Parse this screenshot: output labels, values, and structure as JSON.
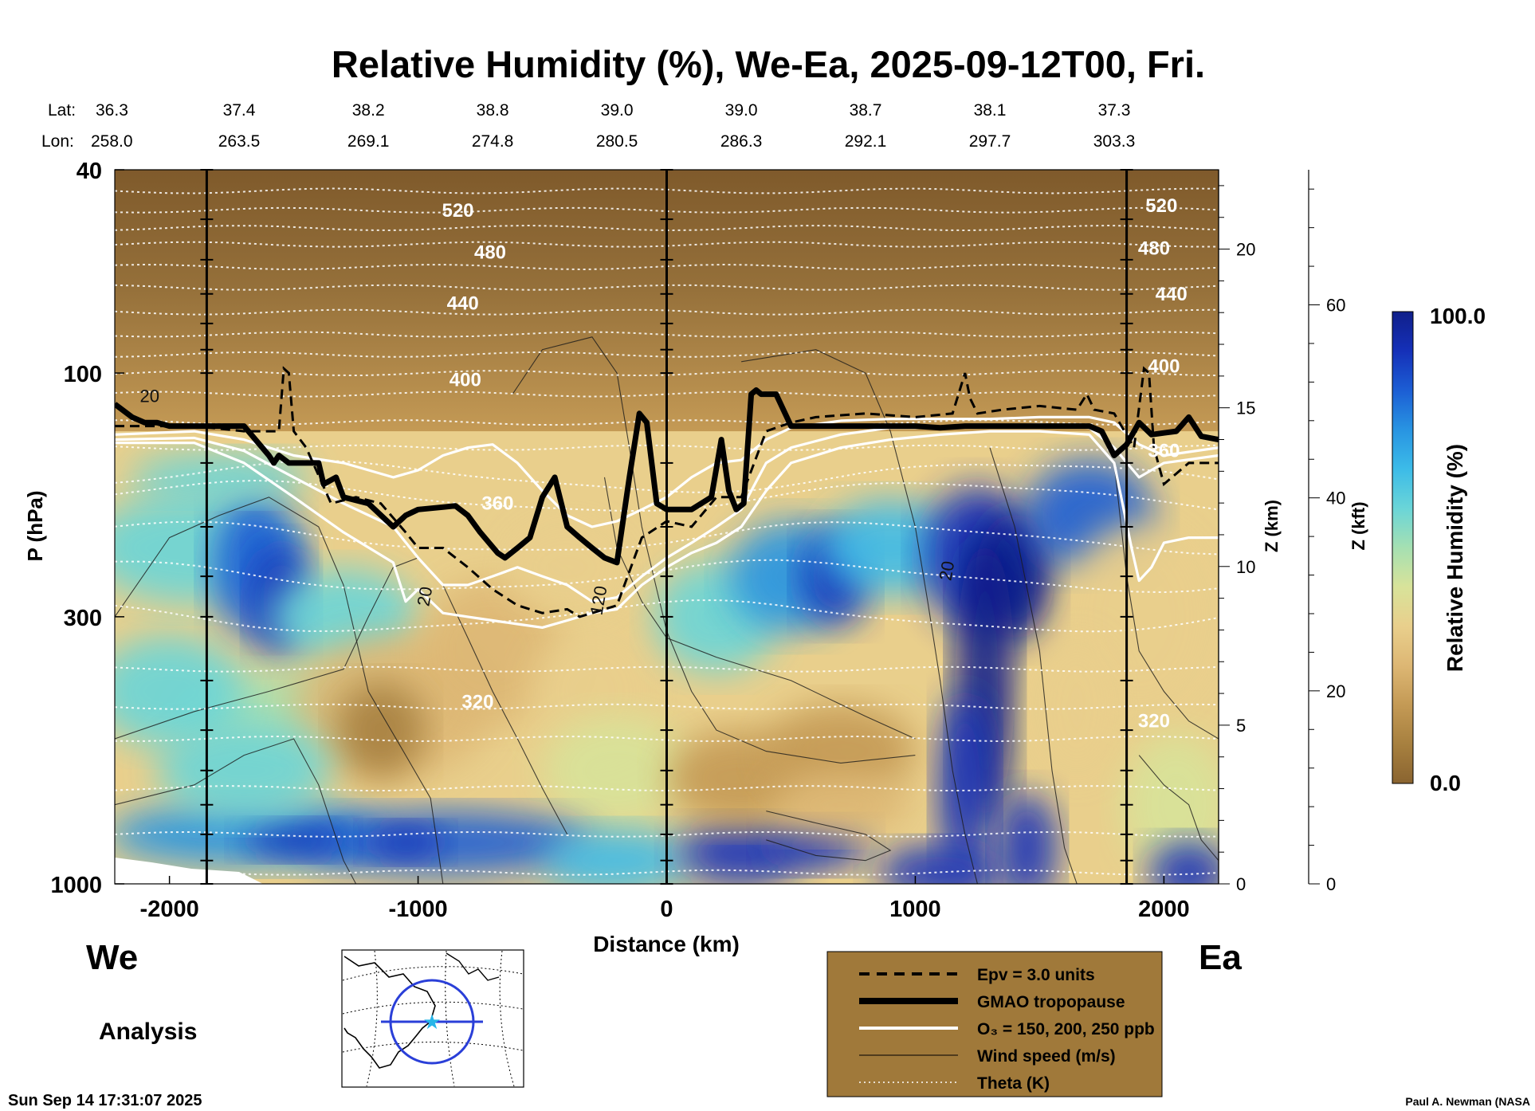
{
  "chart_data": {
    "type": "heatmap",
    "title": "Relative Humidity (%), We-Ea, 2025-09-12T00, Fri.",
    "xlabel": "Distance (km)",
    "ylabel": "P (hPa)",
    "y2label": "Z (km)",
    "y3label": "Z (kft)",
    "xlim": [
      -2220,
      2220
    ],
    "ylim": [
      1000,
      40
    ],
    "x_ticks": [
      -2000,
      -1000,
      0,
      1000,
      2000
    ],
    "x_tick_labels": [
      "-2000",
      "-1000",
      "0",
      "1000",
      "2000"
    ],
    "y_ticks": [
      40,
      100,
      300,
      1000
    ],
    "y_tick_labels": [
      "40",
      "100",
      "300",
      "1000"
    ],
    "z_km_ticks": [
      0,
      5,
      10,
      15,
      20
    ],
    "z_km_tick_labels": [
      "0",
      "5",
      "10",
      "15",
      "20"
    ],
    "z_kft_ticks": [
      0,
      20,
      40,
      60
    ],
    "z_kft_tick_labels": [
      "0",
      "20",
      "40",
      "60"
    ],
    "lat_label": "Lat:",
    "lon_label": "Lon:",
    "lat": [
      "36.3",
      "37.4",
      "38.2",
      "38.8",
      "39.0",
      "39.0",
      "38.7",
      "38.1",
      "37.3"
    ],
    "lon": [
      "258.0",
      "263.5",
      "269.1",
      "274.8",
      "280.5",
      "286.3",
      "292.1",
      "297.7",
      "303.3"
    ],
    "lat_lon_x": [
      -2220,
      -1720,
      -1200,
      -700,
      -200,
      300,
      800,
      1300,
      1800
    ],
    "vertical_lines_km": [
      -1850,
      0,
      1850
    ],
    "colorbar": {
      "label": "Relative Humidity (%)",
      "min": 0.0,
      "max": 100.0,
      "min_label": "0.0",
      "max_label": "100.0",
      "colors": [
        "#8a6430",
        "#a7803f",
        "#c49a55",
        "#ddb774",
        "#e9cf8c",
        "#d8e39a",
        "#a5e0b2",
        "#6ad5d8",
        "#3cbbe8",
        "#2894e2",
        "#1c5ed4",
        "#1530b8",
        "#101f8a"
      ]
    },
    "theta_contours": [
      {
        "label": "520",
        "p": 48
      },
      {
        "label": "480",
        "p": 62
      },
      {
        "label": "440",
        "p": 76
      },
      {
        "label": "400",
        "p": 100
      },
      {
        "label": "360",
        "p": 175
      },
      {
        "label": "320",
        "p": 450
      }
    ],
    "theta_label_positions": [
      {
        "label": "520",
        "x": -840,
        "p": 48
      },
      {
        "label": "480",
        "x": -710,
        "p": 58
      },
      {
        "label": "440",
        "x": -820,
        "p": 73
      },
      {
        "label": "400",
        "x": -810,
        "p": 103
      },
      {
        "label": "360",
        "x": -680,
        "p": 180
      },
      {
        "label": "320",
        "x": -760,
        "p": 440
      },
      {
        "label": "520",
        "x": 1990,
        "p": 47
      },
      {
        "label": "480",
        "x": 1960,
        "p": 57
      },
      {
        "label": "440",
        "x": 2030,
        "p": 70
      },
      {
        "label": "400",
        "x": 2000,
        "p": 97
      },
      {
        "label": "360",
        "x": 2000,
        "p": 142
      },
      {
        "label": "320",
        "x": 1960,
        "p": 480
      }
    ],
    "wind_labels": [
      {
        "label": "20",
        "x": -2080,
        "p": 114
      },
      {
        "label": "20",
        "x": -950,
        "p": 275
      },
      {
        "label": "120",
        "x": -250,
        "p": 280
      },
      {
        "label": "20",
        "x": 1150,
        "p": 245
      }
    ],
    "tropopause": {
      "name": "GMAO tropopause",
      "x": [
        -2220,
        -2150,
        -2100,
        -2050,
        -2000,
        -1950,
        -1850,
        -1700,
        -1600,
        -1580,
        -1560,
        -1520,
        -1400,
        -1380,
        -1330,
        -1300,
        -1200,
        -1100,
        -1050,
        -1000,
        -900,
        -850,
        -800,
        -750,
        -680,
        -650,
        -600,
        -550,
        -500,
        -450,
        -400,
        -350,
        -300,
        -250,
        -200,
        -150,
        -110,
        -80,
        -40,
        0,
        100,
        180,
        220,
        250,
        280,
        310,
        340,
        360,
        380,
        440,
        500,
        550,
        900,
        1000,
        1100,
        1200,
        1300,
        1400,
        1550,
        1650,
        1700,
        1750,
        1800,
        1850,
        1900,
        1950,
        2000,
        2050,
        2100,
        2150,
        2220
      ],
      "p": [
        115,
        122,
        125,
        125,
        127,
        127,
        127,
        127,
        145,
        150,
        145,
        150,
        150,
        165,
        160,
        175,
        180,
        200,
        190,
        185,
        183,
        182,
        190,
        205,
        225,
        230,
        220,
        210,
        175,
        160,
        200,
        210,
        220,
        230,
        235,
        160,
        120,
        125,
        180,
        185,
        185,
        175,
        135,
        170,
        185,
        180,
        110,
        108,
        110,
        110,
        127,
        127,
        127,
        127,
        128,
        127,
        127,
        127,
        127,
        127,
        127,
        130,
        145,
        138,
        125,
        132,
        131,
        130,
        122,
        133,
        135
      ]
    },
    "epv": {
      "name": "Epv = 3.0 units",
      "x": [
        -2220,
        -1900,
        -1700,
        -1560,
        -1540,
        -1520,
        -1500,
        -1450,
        -1350,
        -1250,
        -1150,
        -1050,
        -1000,
        -900,
        -800,
        -700,
        -600,
        -500,
        -400,
        -350,
        -300,
        -250,
        -200,
        -100,
        0,
        100,
        200,
        300,
        400,
        500,
        600,
        800,
        1000,
        1150,
        1200,
        1220,
        1250,
        1350,
        1500,
        1650,
        1690,
        1720,
        1800,
        1880,
        1920,
        1940,
        1960,
        2000,
        2100,
        2220
      ],
      "p": [
        127,
        127,
        130,
        130,
        98,
        100,
        130,
        140,
        180,
        175,
        180,
        205,
        220,
        220,
        240,
        265,
        285,
        295,
        290,
        300,
        295,
        290,
        285,
        210,
        195,
        200,
        175,
        175,
        130,
        125,
        122,
        120,
        122,
        120,
        100,
        112,
        120,
        118,
        116,
        118,
        110,
        118,
        120,
        140,
        98,
        100,
        140,
        165,
        150,
        150
      ]
    },
    "ozone": {
      "name": "O₃ = 150, 200, 250 ppb",
      "lines": [
        {
          "x": [
            -2220,
            -1900,
            -1700,
            -1500,
            -1300,
            -1100,
            -1000,
            -900,
            -800,
            -700,
            -600,
            -500,
            -400,
            -300,
            -200,
            -100,
            0,
            100,
            200,
            300,
            400,
            500,
            700,
            900,
            1100,
            1300,
            1500,
            1700,
            1800,
            1900,
            2000,
            2220
          ],
          "p": [
            132,
            130,
            135,
            145,
            150,
            160,
            155,
            145,
            140,
            138,
            150,
            170,
            190,
            200,
            195,
            185,
            175,
            160,
            150,
            148,
            135,
            128,
            124,
            123,
            123,
            123,
            122,
            122,
            125,
            138,
            145,
            140
          ]
        },
        {
          "x": [
            -2220,
            -1900,
            -1700,
            -1500,
            -1300,
            -1100,
            -1000,
            -900,
            -800,
            -700,
            -600,
            -500,
            -400,
            -300,
            -200,
            -100,
            0,
            100,
            200,
            300,
            400,
            500,
            700,
            900,
            1100,
            1300,
            1500,
            1700,
            1800,
            1900,
            2000,
            2220
          ],
          "p": [
            135,
            134,
            142,
            160,
            180,
            200,
            230,
            260,
            260,
            250,
            240,
            250,
            260,
            280,
            275,
            250,
            230,
            215,
            200,
            185,
            150,
            140,
            132,
            128,
            128,
            127,
            126,
            128,
            140,
            160,
            150,
            145
          ]
        },
        {
          "x": [
            -2220,
            -1900,
            -1700,
            -1500,
            -1300,
            -1100,
            -1050,
            -1000,
            -900,
            -800,
            -700,
            -600,
            -500,
            -400,
            -300,
            -200,
            -100,
            0,
            100,
            200,
            300,
            400,
            500,
            700,
            900,
            1100,
            1300,
            1500,
            1700,
            1800,
            1870,
            1900,
            1950,
            2000,
            2100,
            2220
          ],
          "p": [
            137,
            137,
            150,
            175,
            205,
            235,
            280,
            265,
            295,
            300,
            305,
            310,
            315,
            305,
            295,
            290,
            260,
            240,
            225,
            215,
            200,
            170,
            150,
            140,
            135,
            132,
            130,
            130,
            132,
            150,
            220,
            255,
            240,
            215,
            210,
            210
          ]
        }
      ]
    },
    "legend": {
      "items": [
        {
          "label": "Epv = 3.0 units",
          "style": "dashed"
        },
        {
          "label": "GMAO tropopause",
          "style": "thick"
        },
        {
          "label": "O₃ = 150, 200, 250 ppb",
          "style": "white"
        },
        {
          "label": "Wind speed (m/s)",
          "style": "thin"
        },
        {
          "label": "Theta (K)",
          "style": "dotted"
        }
      ],
      "colors": {
        "box": "#a0793a",
        "white_line": "#ffffff"
      }
    },
    "annotations": {
      "west": "We",
      "east": "Ea",
      "analysis": "Analysis",
      "timestamp": "Sun Sep 14 17:31:07 2025",
      "credit": "Paul A. Newman (NASA"
    }
  }
}
